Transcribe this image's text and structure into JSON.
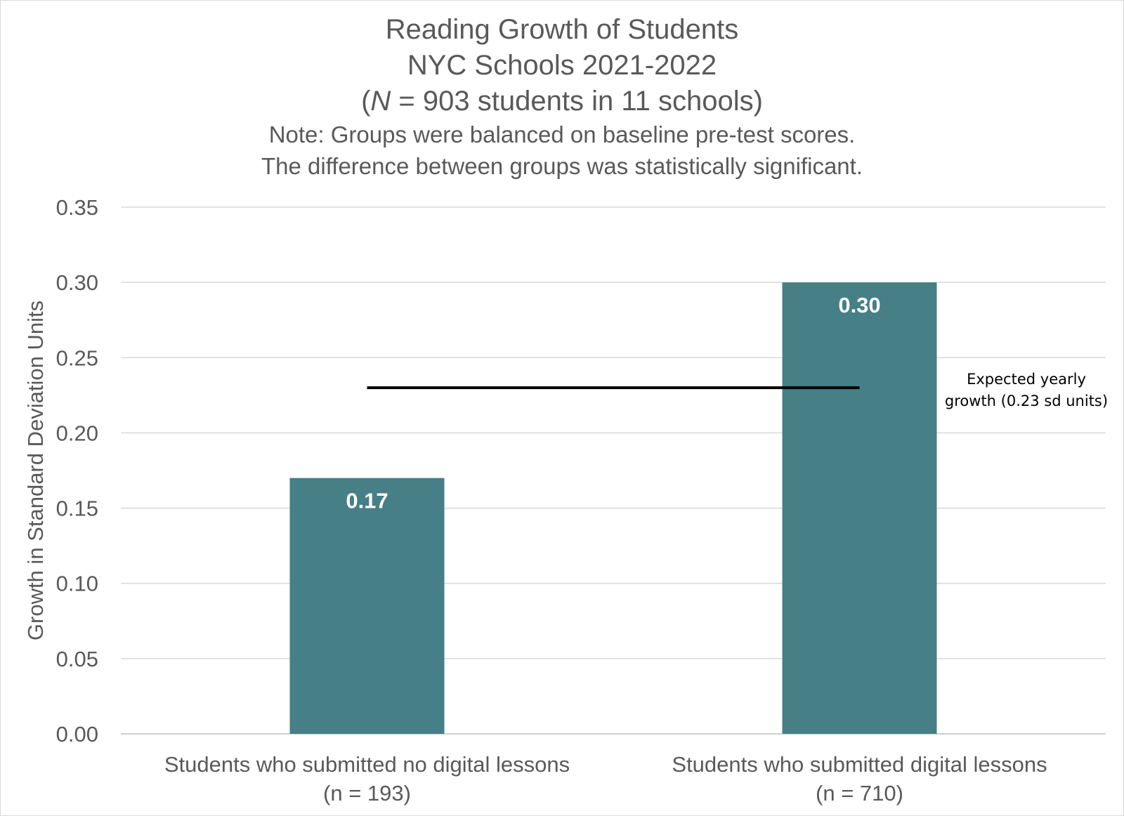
{
  "chart_data": {
    "type": "bar",
    "title": "Reading Growth of Students",
    "subtitle_lines": [
      "NYC Schools 2021-2022"
    ],
    "sample_line": {
      "prefix": "(",
      "italic": "N",
      "suffix": " = 903 students in 11 schools)"
    },
    "note_lines": [
      "Note: Groups were balanced on baseline pre-test scores.",
      "The difference between groups was statistically significant."
    ],
    "categories": [
      {
        "line1": "Students who submitted no digital lessons",
        "line2": "(n = 193)"
      },
      {
        "line1": "Students who submitted digital lessons",
        "line2": "(n = 710)"
      }
    ],
    "values": [
      0.17,
      0.3
    ],
    "data_labels": [
      "0.17",
      "0.30"
    ],
    "ylabel": "Growth in Standard Deviation Units",
    "ylim": [
      0,
      0.35
    ],
    "yticks": [
      "0.00",
      "0.05",
      "0.10",
      "0.15",
      "0.20",
      "0.25",
      "0.30",
      "0.35"
    ],
    "grid": true,
    "bar_color": "#467f86",
    "reference_line": {
      "value": 0.23,
      "label_lines": [
        "Expected yearly",
        "growth (0.23 sd units)"
      ],
      "color": "#000000"
    }
  }
}
